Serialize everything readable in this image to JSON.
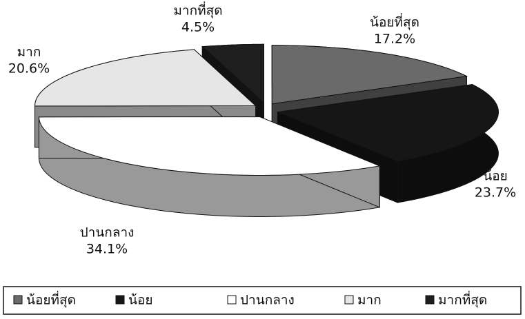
{
  "chart_data": {
    "type": "pie3d",
    "categories": [
      "น้อยที่สุด",
      "น้อย",
      "ปานกลาง",
      "มาก",
      "มากที่สุด"
    ],
    "values": [
      17.2,
      23.7,
      34.1,
      20.6,
      4.5
    ],
    "value_labels": [
      "17.2%",
      "23.7%",
      "34.1%",
      "20.6%",
      "4.5%"
    ],
    "colors": [
      "#6a6a6a",
      "#161616",
      "#ffffff",
      "#e6e6e6",
      "#1e1e1e"
    ],
    "legend": "bottom"
  }
}
